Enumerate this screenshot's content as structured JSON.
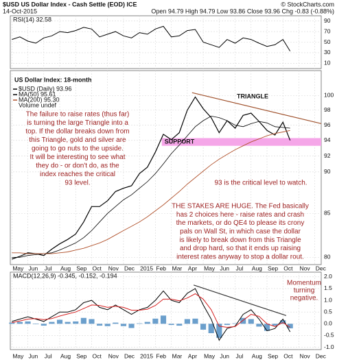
{
  "header": {
    "symbol": "$USD US Dollar Index - Cash Settle (EOD) ICE",
    "source": "© StockCharts.com",
    "date": "14-Oct-2015",
    "quote": "Open 94.79 High 94.79 Low 93.86 Close 93.96 Chg -0.83 (-0.88%)"
  },
  "chart_data": [
    {
      "type": "line",
      "panel": "rsi",
      "x": [
        0,
        0.5,
        1,
        1.5,
        2,
        2.5,
        3,
        3.5,
        4,
        4.5,
        5,
        5.5,
        6,
        6.5,
        7,
        7.5,
        8,
        8.5,
        9,
        9.5,
        10,
        10.5,
        11,
        11.5,
        12,
        12.5,
        13,
        13.5,
        14,
        14.5,
        15,
        15.5,
        16,
        16.5,
        17,
        17.45
      ],
      "series": [
        {
          "name": "RSI(14) 32.58",
          "color": "#000000",
          "values": [
            55,
            60,
            52,
            48,
            58,
            62,
            70,
            68,
            72,
            78,
            75,
            60,
            65,
            70,
            62,
            58,
            68,
            65,
            75,
            80,
            60,
            62,
            72,
            74,
            50,
            45,
            40,
            55,
            48,
            58,
            55,
            48,
            42,
            45,
            55,
            33
          ]
        }
      ],
      "ylim": [
        0,
        100
      ],
      "yticks": [
        90,
        70,
        50,
        30,
        10
      ],
      "xlim": [
        -0.1,
        19.4
      ],
      "grid": true
    },
    {
      "type": "line",
      "panel": "price",
      "title": "US Dollar Index: 18-month",
      "log_scale": true,
      "x": [
        0,
        0.5,
        1,
        1.5,
        2,
        2.5,
        3,
        3.5,
        4,
        4.5,
        5,
        5.5,
        6,
        6.5,
        7,
        7.5,
        8,
        8.5,
        9,
        9.5,
        10,
        10.5,
        11,
        11.5,
        12,
        12.5,
        13,
        13.5,
        14,
        14.5,
        15,
        15.5,
        16,
        16.5,
        17,
        17.45
      ],
      "series": [
        {
          "name": "$USD (Daily) 93.96",
          "color": "#000000",
          "width": 1.2,
          "values": [
            79.8,
            80.1,
            80.5,
            80.4,
            80.2,
            80.9,
            81.5,
            82.0,
            82.6,
            84.0,
            85.8,
            85.8,
            86.5,
            87.6,
            88.0,
            88.3,
            89.8,
            90.6,
            92.5,
            94.8,
            94.1,
            95.0,
            98.0,
            99.8,
            98.2,
            97.0,
            95.0,
            96.6,
            95.6,
            97.3,
            97.6,
            96.5,
            95.3,
            94.7,
            96.4,
            94.0
          ]
        },
        {
          "name": "MA(50) 95.61",
          "color": "#000000",
          "width": 0.8,
          "values": [
            80.0,
            80.0,
            80.2,
            80.3,
            80.4,
            80.5,
            80.8,
            81.2,
            81.6,
            82.2,
            83.0,
            84.0,
            85.0,
            85.8,
            86.6,
            87.2,
            88.0,
            88.8,
            89.8,
            91.0,
            92.3,
            93.4,
            94.6,
            95.8,
            96.6,
            97.2,
            97.0,
            96.6,
            96.0,
            95.8,
            96.2,
            96.5,
            96.3,
            95.8,
            95.7,
            95.6
          ]
        },
        {
          "name": "MA(200) 95.30",
          "color": "#b0502a",
          "width": 0.9,
          "values": [
            80.5,
            80.5,
            80.4,
            80.4,
            80.4,
            80.4,
            80.5,
            80.6,
            80.8,
            81.0,
            81.3,
            81.6,
            82.0,
            82.5,
            83.0,
            83.5,
            84.0,
            84.6,
            85.3,
            86.0,
            86.8,
            87.6,
            88.5,
            89.3,
            90.1,
            90.9,
            91.6,
            92.2,
            92.8,
            93.3,
            93.8,
            94.2,
            94.6,
            94.9,
            95.1,
            95.3
          ]
        }
      ],
      "volume_label": "Volume undef",
      "ylim": [
        79.2,
        103.5
      ],
      "yticks": [
        100,
        98,
        96,
        94,
        92,
        90,
        85,
        80
      ],
      "xlim": [
        -0.1,
        19.4
      ],
      "xticks": [
        {
          "value": 0,
          "label": "May"
        },
        {
          "value": 1,
          "label": "Jun"
        },
        {
          "value": 2,
          "label": "Jul"
        },
        {
          "value": 3,
          "label": "Aug"
        },
        {
          "value": 4,
          "label": "Sep"
        },
        {
          "value": 5,
          "label": "Oct"
        },
        {
          "value": 6,
          "label": "Nov"
        },
        {
          "value": 7,
          "label": "Dec"
        },
        {
          "value": 8,
          "label": "2015"
        },
        {
          "value": 9,
          "label": "Feb"
        },
        {
          "value": 10,
          "label": "Mar"
        },
        {
          "value": 11,
          "label": "Apr"
        },
        {
          "value": 12,
          "label": "May"
        },
        {
          "value": 13,
          "label": "Jun"
        },
        {
          "value": 14,
          "label": "Jul"
        },
        {
          "value": 15,
          "label": "Aug"
        },
        {
          "value": 16,
          "label": "Sep"
        },
        {
          "value": 17,
          "label": "Oct"
        },
        {
          "value": 18,
          "label": "Nov"
        },
        {
          "value": 19,
          "label": "Dec"
        }
      ],
      "grid": true,
      "trendlines": [
        {
          "x": [
            11.3,
            19.4
          ],
          "y": [
            100.4,
            96.2
          ],
          "color": "#a0522d"
        }
      ],
      "band": {
        "x": [
          9.4,
          19.4
        ],
        "y": [
          93.3,
          94.3
        ],
        "color": "#f5a6e8",
        "label": "SUPPORT"
      },
      "annotations": {
        "triangle": "TRIANGLE",
        "left": [
          "The failure to raise rates (thus far)",
          "is turning the large Triangle into a",
          "top. If the dollar breaks down from",
          "this Triangle, gold and silver are",
          "going to go nuts to the upside.",
          "It will be interesting to see what",
          "they do - or don't do, as the",
          "index reaches the critical",
          "93 level."
        ],
        "critical": "93 is the critical level to watch.",
        "stakes": [
          "THE STAKES ARE HUGE. The Fed basically",
          "has 2 choices here - raise rates and crash",
          "the markets, or do QE4 to please its crony",
          "pals on Wall St, in which case the dollar",
          "is likely to break down from this Triangle",
          "and drop hard, so that it ends up raising",
          "interest rates anyway to stop a dollar rout."
        ]
      }
    },
    {
      "type": "macd",
      "panel": "macd",
      "label": "MACD(12,26,9) -0.345, -0.152, -0.194",
      "x": [
        0,
        0.5,
        1,
        1.5,
        2,
        2.5,
        3,
        3.5,
        4,
        4.5,
        5,
        5.5,
        6,
        6.5,
        7,
        7.5,
        8,
        8.5,
        9,
        9.5,
        10,
        10.5,
        11,
        11.5,
        12,
        12.5,
        13,
        13.5,
        14,
        14.5,
        15,
        15.5,
        16,
        16.5,
        17,
        17.45
      ],
      "series": [
        {
          "color": "#000000",
          "values": [
            0.1,
            0.2,
            0.3,
            0.2,
            0.1,
            0.3,
            0.5,
            0.5,
            0.6,
            0.9,
            1.0,
            0.7,
            0.6,
            0.8,
            0.6,
            0.4,
            0.6,
            0.7,
            1.0,
            1.4,
            1.0,
            0.9,
            1.3,
            1.5,
            0.8,
            0.2,
            -0.7,
            -0.2,
            -0.1,
            0.4,
            0.6,
            0.2,
            -0.3,
            -0.2,
            0.2,
            -0.345
          ]
        },
        {
          "color": "#d62020",
          "values": [
            0.05,
            0.12,
            0.2,
            0.22,
            0.18,
            0.22,
            0.33,
            0.42,
            0.5,
            0.65,
            0.8,
            0.78,
            0.7,
            0.75,
            0.7,
            0.58,
            0.58,
            0.62,
            0.78,
            1.05,
            1.05,
            0.98,
            1.1,
            1.28,
            1.05,
            0.6,
            -0.1,
            -0.15,
            -0.12,
            0.15,
            0.4,
            0.32,
            0.0,
            -0.12,
            0.05,
            -0.152
          ]
        }
      ],
      "histogram": {
        "color": "#6b9fcc",
        "values": [
          0.05,
          0.08,
          0.1,
          -0.02,
          -0.08,
          0.08,
          0.17,
          0.08,
          0.1,
          0.25,
          0.2,
          -0.08,
          -0.1,
          0.05,
          -0.1,
          -0.18,
          0.02,
          0.08,
          0.22,
          0.35,
          -0.05,
          -0.08,
          0.2,
          0.22,
          -0.25,
          -0.4,
          -0.6,
          -0.05,
          0.02,
          0.25,
          0.2,
          -0.12,
          -0.3,
          -0.08,
          0.15,
          -0.194
        ]
      },
      "ylim": [
        -1.1,
        2.2
      ],
      "yticks": [
        {
          "value": 2,
          "label": "2.0"
        },
        {
          "value": 1.5,
          "label": "1.5"
        },
        {
          "value": 1,
          "label": "1.0"
        },
        {
          "value": 0.5,
          "label": "0.5"
        },
        {
          "value": 0,
          "label": "0.0"
        },
        {
          "value": -0.5,
          "label": "-0.5"
        },
        {
          "value": -1,
          "label": "-1.0"
        }
      ],
      "xlim": [
        -0.1,
        19.4
      ],
      "xticks": [
        {
          "value": 0,
          "label": "May"
        },
        {
          "value": 1,
          "label": "Jun"
        },
        {
          "value": 2,
          "label": "Jul"
        },
        {
          "value": 3,
          "label": "Aug"
        },
        {
          "value": 4,
          "label": "Sep"
        },
        {
          "value": 5,
          "label": "Oct"
        },
        {
          "value": 6,
          "label": "Nov"
        },
        {
          "value": 7,
          "label": "Dec"
        },
        {
          "value": 8,
          "label": "2015"
        },
        {
          "value": 9,
          "label": "Feb"
        },
        {
          "value": 10,
          "label": "Mar"
        },
        {
          "value": 11,
          "label": "Apr"
        },
        {
          "value": 12,
          "label": "May"
        },
        {
          "value": 13,
          "label": "Jun"
        },
        {
          "value": 14,
          "label": "Jul"
        },
        {
          "value": 15,
          "label": "Aug"
        },
        {
          "value": 16,
          "label": "Sep"
        },
        {
          "value": 17,
          "label": "Oct"
        },
        {
          "value": 18,
          "label": "Nov"
        },
        {
          "value": 19,
          "label": "Dec"
        }
      ],
      "grid": true,
      "trendlines": [
        {
          "x": [
            11.4,
            17.2
          ],
          "y": [
            1.65,
            0.35
          ],
          "color": "#333333"
        }
      ],
      "annotation": [
        "Momentum",
        "turning",
        "negative."
      ]
    }
  ]
}
